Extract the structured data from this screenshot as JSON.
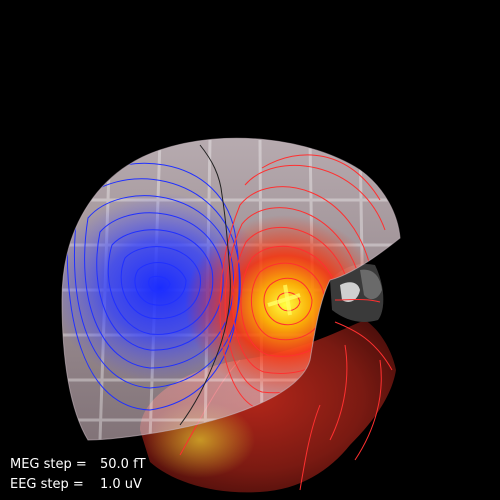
{
  "scene": {
    "background": "#000000",
    "helmet_color": "#f1e0e6",
    "head_color": "#8a1c14",
    "positive_color": "#ff2a00",
    "negative_color": "#1f2dff",
    "peak_color": "#ffff33",
    "contour_positive_color": "#ff3030",
    "contour_negative_color": "#2030ff",
    "zero_contour_color": "#222222",
    "sensor_tile_color": "#ffffff"
  },
  "overlay": {
    "meg_label": "MEG step =",
    "meg_value": "50.0 fT",
    "eeg_label": "EEG step =",
    "eeg_value": "1.0 uV"
  }
}
